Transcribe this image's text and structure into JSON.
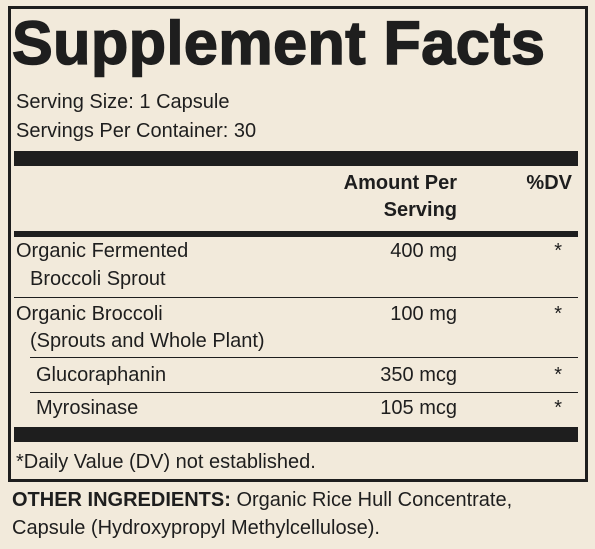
{
  "title": "Supplement Facts",
  "serving_size": "Serving Size: 1 Capsule",
  "servings_per_container": "Servings Per Container: 30",
  "table": {
    "header": [
      [
        "Amount Per",
        "Serving"
      ],
      "%DV"
    ],
    "rows": [
      {
        "name": [
          "Organic Fermented",
          "Broccoli Sprout"
        ],
        "amount": "400 mg",
        "dv": "*"
      },
      {
        "name": [
          "Organic Broccoli",
          "(Sprouts and Whole Plant)"
        ],
        "amount": "100 mg",
        "dv": "*"
      },
      {
        "name": [
          "Glucoraphanin"
        ],
        "amount": "350 mcg",
        "dv": "*"
      },
      {
        "name": [
          "Myrosinase"
        ],
        "amount": "105 mcg",
        "dv": "*"
      }
    ]
  },
  "footnote": "*Daily Value (DV) not established.",
  "other_ingredients": {
    "label": "OTHER INGREDIENTS:",
    "text": [
      "Organic Rice Hull Concentrate,",
      "Capsule (Hydroxypropyl Methylcellulose)."
    ]
  }
}
